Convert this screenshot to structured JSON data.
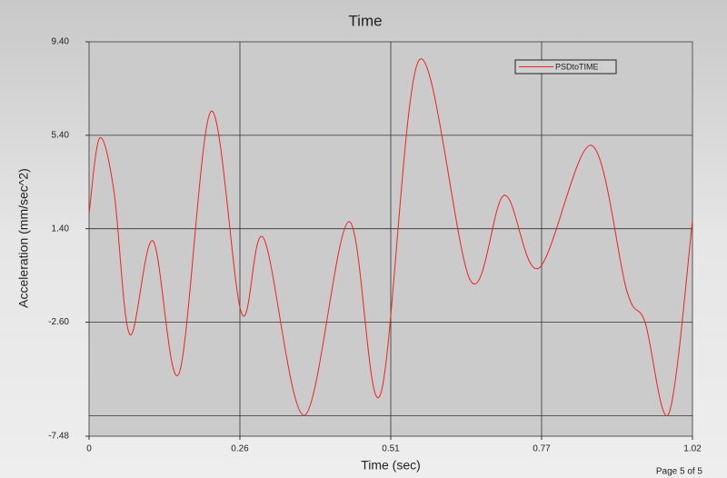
{
  "chart_data": {
    "type": "line",
    "title": "Time",
    "x_label": "Time (sec)",
    "y_label": "Acceleration (mm/sec^2)",
    "footer": "Page 5 of 5",
    "x": [
      0,
      0.018,
      0.042,
      0.069,
      0.108,
      0.152,
      0.206,
      0.258,
      0.295,
      0.364,
      0.439,
      0.492,
      0.558,
      0.645,
      0.702,
      0.76,
      0.849,
      0.909,
      0.94,
      0.98,
      1.02
    ],
    "series": [
      {
        "name": "PSDtoTIME",
        "color": "#ee2222",
        "values": [
          2.05,
          5.28,
          3.02,
          -3.13,
          0.88,
          -4.8,
          6.42,
          -2.23,
          1.0,
          -6.59,
          1.7,
          -5.73,
          8.62,
          -0.83,
          2.83,
          -0.29,
          4.97,
          -1.26,
          -2.62,
          -6.51,
          1.74
        ]
      }
    ],
    "xlim": [
      0,
      1.02
    ],
    "ylim": [
      -7.48,
      9.4
    ],
    "xticks": [
      0,
      {
        "value": 0.255,
        "label": "0.26"
      },
      0.51,
      {
        "value": 0.765,
        "label": "0.77"
      },
      1.02
    ],
    "yticks": [
      {
        "value": 9.4,
        "label": "9.40"
      },
      {
        "value": 5.4,
        "label": "5.40"
      },
      {
        "value": 1.4,
        "label": "1.40"
      },
      {
        "value": -2.6,
        "label": "-2.60"
      },
      -7.48
    ],
    "ygrid": [
      5.4,
      1.4,
      -2.6,
      -6.6
    ],
    "xgrid": [
      0.255,
      0.51,
      0.765
    ],
    "legend": "top-right"
  }
}
